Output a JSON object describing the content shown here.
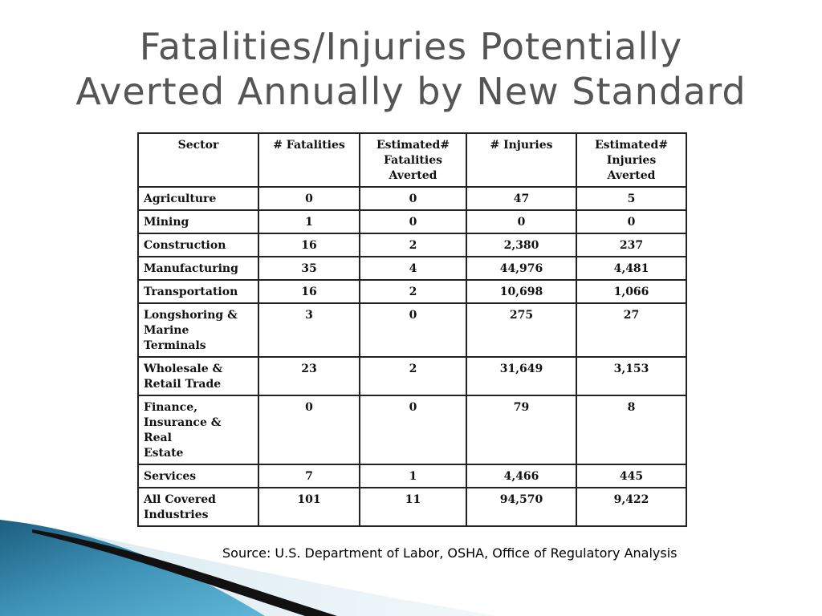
{
  "slide": {
    "title_line1": "Fatalities/Injuries Potentially",
    "title_line2": "Averted Annually by New Standard",
    "source": "Source: U.S. Department of Labor, OSHA, Office of Regulatory Analysis"
  },
  "table": {
    "headers": [
      [
        "Sector"
      ],
      [
        "# Fatalities"
      ],
      [
        "Estimated#",
        "Fatalities",
        "Averted"
      ],
      [
        "# Injuries"
      ],
      [
        "Estimated#",
        "Injuries",
        "Averted"
      ]
    ],
    "rows": [
      {
        "sector": [
          "Agriculture"
        ],
        "fatalities": "0",
        "fatalities_averted": "0",
        "injuries": "47",
        "injuries_averted": "5"
      },
      {
        "sector": [
          "Mining"
        ],
        "fatalities": "1",
        "fatalities_averted": "0",
        "injuries": "0",
        "injuries_averted": "0"
      },
      {
        "sector": [
          "Construction"
        ],
        "fatalities": "16",
        "fatalities_averted": "2",
        "injuries": "2,380",
        "injuries_averted": "237"
      },
      {
        "sector": [
          "Manufacturing"
        ],
        "fatalities": "35",
        "fatalities_averted": "4",
        "injuries": "44,976",
        "injuries_averted": "4,481"
      },
      {
        "sector": [
          "Transportation"
        ],
        "fatalities": "16",
        "fatalities_averted": "2",
        "injuries": "10,698",
        "injuries_averted": "1,066"
      },
      {
        "sector": [
          "Longshoring &",
          "Marine",
          "Terminals"
        ],
        "fatalities": "3",
        "fatalities_averted": "0",
        "injuries": "275",
        "injuries_averted": "27"
      },
      {
        "sector": [
          "Wholesale &",
          "Retail Trade"
        ],
        "fatalities": "23",
        "fatalities_averted": "2",
        "injuries": "31,649",
        "injuries_averted": "3,153"
      },
      {
        "sector": [
          "Finance,",
          "Insurance & Real",
          "Estate"
        ],
        "fatalities": "0",
        "fatalities_averted": "0",
        "injuries": "79",
        "injuries_averted": "8"
      },
      {
        "sector": [
          "Services"
        ],
        "fatalities": "7",
        "fatalities_averted": "1",
        "injuries": "4,466",
        "injuries_averted": "445"
      },
      {
        "sector": [
          "All Covered",
          "Industries"
        ],
        "fatalities": "101",
        "fatalities_averted": "11",
        "injuries": "94,570",
        "injuries_averted": "9,422"
      }
    ]
  },
  "colors": {
    "title": "#555555",
    "swoosh_dark": "#1c5f80",
    "swoosh_light": "#5fb6d8",
    "swoosh_black": "#111111"
  }
}
